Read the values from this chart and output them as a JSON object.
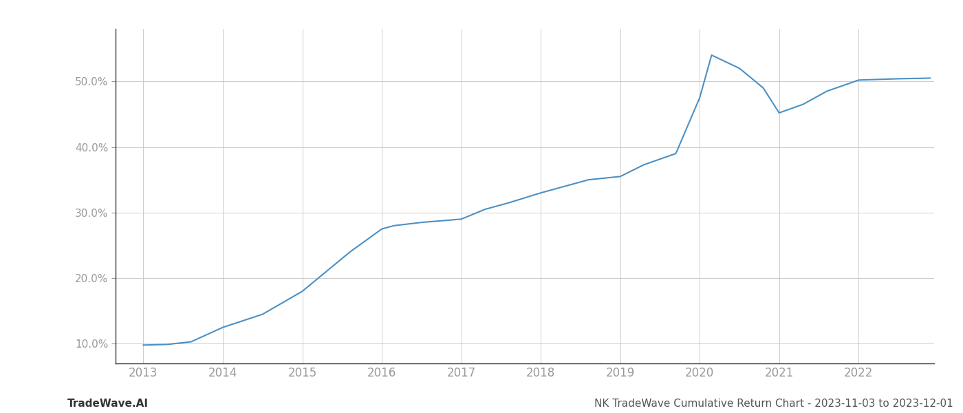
{
  "years": [
    2013.0,
    2013.3,
    2013.6,
    2014.0,
    2014.5,
    2015.0,
    2015.3,
    2015.6,
    2016.0,
    2016.15,
    2016.5,
    2017.0,
    2017.3,
    2017.6,
    2018.0,
    2018.3,
    2018.6,
    2019.0,
    2019.3,
    2019.7,
    2020.0,
    2020.15,
    2020.5,
    2020.8,
    2021.0,
    2021.3,
    2021.6,
    2022.0,
    2022.5,
    2022.9
  ],
  "values": [
    9.8,
    9.9,
    10.3,
    12.5,
    14.5,
    18.0,
    21.0,
    24.0,
    27.5,
    28.0,
    28.5,
    29.0,
    30.5,
    31.5,
    33.0,
    34.0,
    35.0,
    35.5,
    37.3,
    39.0,
    47.5,
    54.0,
    52.0,
    49.0,
    45.2,
    46.5,
    48.5,
    50.2,
    50.4,
    50.5
  ],
  "line_color": "#4a90c4",
  "line_width": 1.5,
  "x_ticks": [
    2013,
    2014,
    2015,
    2016,
    2017,
    2018,
    2019,
    2020,
    2021,
    2022
  ],
  "y_ticks": [
    10.0,
    20.0,
    30.0,
    40.0,
    50.0
  ],
  "xlim": [
    2012.65,
    2022.95
  ],
  "ylim": [
    7.0,
    58.0
  ],
  "bg_color": "#ffffff",
  "grid_color": "#cccccc",
  "tick_color": "#999999",
  "spine_color": "#333333",
  "footer_left": "TradeWave.AI",
  "footer_right": "NK TradeWave Cumulative Return Chart - 2023-11-03 to 2023-12-01",
  "footer_fontsize": 11
}
